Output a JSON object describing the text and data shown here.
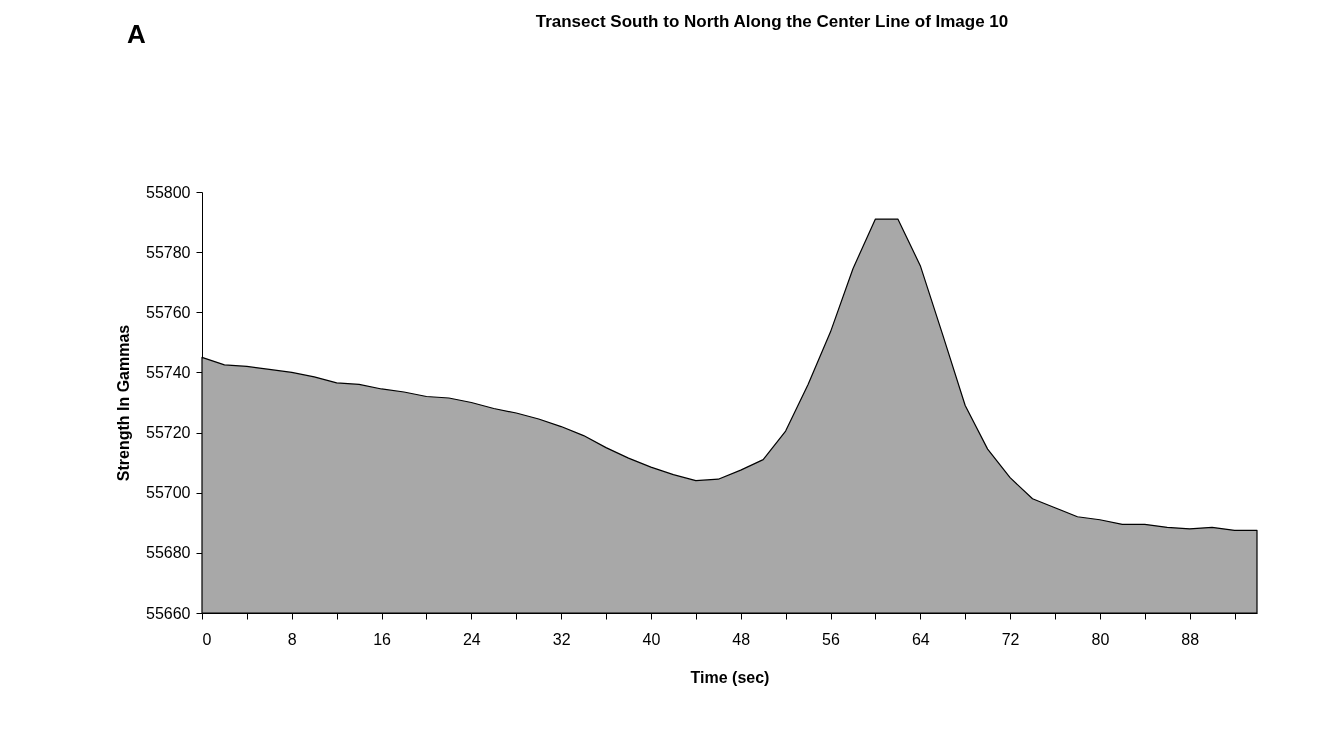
{
  "chart_data": {
    "type": "area",
    "title": "Transect South to North Along the Center Line of Image 10",
    "annotations": [
      "A"
    ],
    "xlabel": "Time (sec)",
    "ylabel": "Strength In Gammas",
    "x": [
      0,
      2,
      4,
      6,
      8,
      10,
      12,
      14,
      16,
      18,
      20,
      22,
      24,
      26,
      28,
      30,
      32,
      34,
      36,
      38,
      40,
      42,
      44,
      46,
      48,
      50,
      52,
      54,
      56,
      58,
      60,
      62,
      64,
      66,
      68,
      70,
      72,
      74,
      76,
      78,
      80,
      82,
      84,
      86,
      88,
      90,
      92,
      94
    ],
    "series": [
      {
        "color": "#a8a8a8",
        "values": [
          55745,
          55742.5,
          55742,
          55741,
          55740,
          55738.5,
          55736.5,
          55736,
          55734.5,
          55733.5,
          55732,
          55731.5,
          55730,
          55728,
          55726.5,
          55724.5,
          55722,
          55719,
          55715,
          55711.5,
          55708.5,
          55706,
          55704,
          55704.5,
          55707.5,
          55711,
          55720.5,
          55736,
          55753.5,
          55774.5,
          55791,
          55791,
          55775.5,
          55752.5,
          55729,
          55714.5,
          55705,
          55698,
          55695,
          55692,
          55691,
          55689.5,
          55689.5,
          55688.5,
          55688,
          55688.5,
          55687.5,
          55687.5
        ]
      }
    ],
    "xlim": [
      0,
      94
    ],
    "ylim": [
      55660,
      55800
    ],
    "xticks": [
      0,
      {
        "value": 4,
        "label": null
      },
      8,
      {
        "value": 12,
        "label": null
      },
      16,
      {
        "value": 20,
        "label": null
      },
      24,
      {
        "value": 28,
        "label": null
      },
      32,
      {
        "value": 36,
        "label": null
      },
      40,
      {
        "value": 44,
        "label": null
      },
      48,
      {
        "value": 52,
        "label": null
      },
      56,
      {
        "value": 60,
        "label": null
      },
      64,
      {
        "value": 68,
        "label": null
      },
      72,
      {
        "value": 76,
        "label": null
      },
      80,
      {
        "value": 84,
        "label": null
      },
      88,
      {
        "value": 92,
        "label": null
      }
    ],
    "yticks": [
      55660,
      55680,
      55700,
      55720,
      55740,
      55760,
      55780,
      55800
    ],
    "grid": false
  }
}
